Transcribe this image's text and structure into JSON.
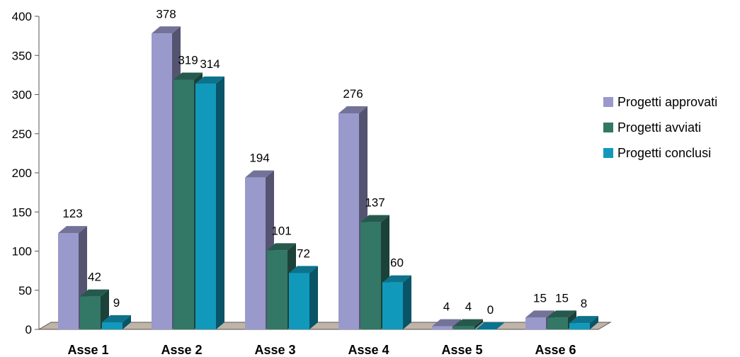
{
  "chart_data": {
    "type": "bar",
    "categories": [
      "Asse 1",
      "Asse 2",
      "Asse 3",
      "Asse 4",
      "Asse 5",
      "Asse 6"
    ],
    "series": [
      {
        "name": "Progetti approvati",
        "values": [
          123,
          378,
          194,
          276,
          4,
          15
        ],
        "color": "#9999cc"
      },
      {
        "name": "Progetti avviati",
        "values": [
          42,
          319,
          101,
          137,
          4,
          15
        ],
        "color": "#337766"
      },
      {
        "name": "Progetti conclusi",
        "values": [
          9,
          314,
          72,
          60,
          0,
          8
        ],
        "color": "#1199bb"
      }
    ],
    "data_labels": [
      [
        "123",
        "378",
        "194",
        "276",
        "4",
        "15"
      ],
      [
        "42",
        "319",
        "101",
        "137",
        "4",
        "15"
      ],
      [
        "9",
        "314",
        "72",
        "60",
        "0",
        "8"
      ]
    ],
    "yticks": [
      0,
      50,
      100,
      150,
      200,
      250,
      300,
      350,
      400
    ],
    "ylim": [
      0,
      400
    ],
    "title": "",
    "xlabel": "",
    "ylabel": "",
    "legend_position": "right",
    "grid": false,
    "style": "3d-clustered-columns",
    "floor_color": "#c0b4a8"
  }
}
